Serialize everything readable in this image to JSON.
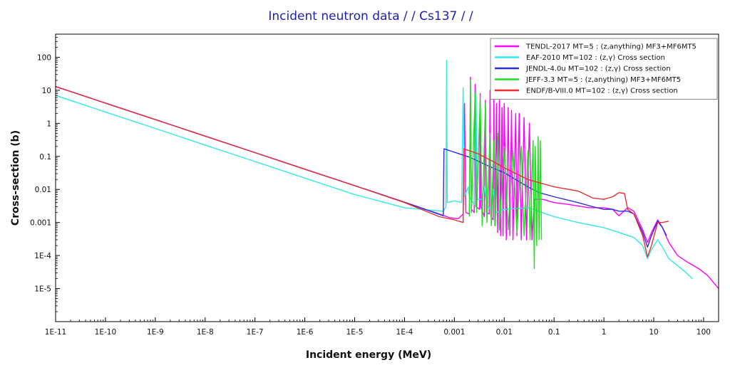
{
  "chart_data": {
    "type": "line",
    "title": "Incident neutron data  /  / Cs137  /  /",
    "xlabel": "Incident energy (MeV)",
    "ylabel": "Cross-section (b)",
    "xscale": "log",
    "yscale": "log",
    "xlim": [
      1e-11,
      200
    ],
    "ylim": [
      1e-06,
      500
    ],
    "grid": false,
    "legend_position": "top-right",
    "x_ticks": [
      {
        "value": 1e-11,
        "label": "1E-11"
      },
      {
        "value": 1e-10,
        "label": "1E-10"
      },
      {
        "value": 1e-09,
        "label": "1E-9"
      },
      {
        "value": 1e-08,
        "label": "1E-8"
      },
      {
        "value": 1e-07,
        "label": "1E-7"
      },
      {
        "value": 1e-06,
        "label": "1E-6"
      },
      {
        "value": 1e-05,
        "label": "1E-5"
      },
      {
        "value": 0.0001,
        "label": "1E-4"
      },
      {
        "value": 0.001,
        "label": "0.001"
      },
      {
        "value": 0.01,
        "label": "0.01"
      },
      {
        "value": 0.1,
        "label": "0.1"
      },
      {
        "value": 1,
        "label": "1"
      },
      {
        "value": 10,
        "label": "10"
      },
      {
        "value": 100,
        "label": "100"
      }
    ],
    "y_ticks": [
      {
        "value": 1e-05,
        "label": "1E-5"
      },
      {
        "value": 0.0001,
        "label": "1E-4"
      },
      {
        "value": 0.001,
        "label": "0.001"
      },
      {
        "value": 0.01,
        "label": "0.01"
      },
      {
        "value": 0.1,
        "label": "0.1"
      },
      {
        "value": 1,
        "label": "1"
      },
      {
        "value": 10,
        "label": "10"
      },
      {
        "value": 100,
        "label": "100"
      }
    ],
    "series": [
      {
        "name": "TENDL-2017  MT=5 : (z,anything) MF3+MF6MT5",
        "color": "#ff00ff",
        "points": [
          [
            1e-11,
            13
          ],
          [
            1e-10,
            4.1
          ],
          [
            1e-09,
            1.3
          ],
          [
            1e-08,
            0.41
          ],
          [
            1e-07,
            0.13
          ],
          [
            1e-06,
            0.041
          ],
          [
            1e-05,
            0.013
          ],
          [
            0.0001,
            0.0041
          ],
          [
            0.0005,
            0.0018
          ],
          [
            0.0008,
            0.0014
          ],
          [
            0.0012,
            0.0013
          ],
          [
            0.0015,
            0.0018
          ],
          [
            0.0016,
            4
          ],
          [
            0.0017,
            0.002
          ],
          [
            0.002,
            0.0018
          ],
          [
            0.0021,
            25
          ],
          [
            0.0022,
            0.0025
          ],
          [
            0.0025,
            0.002
          ],
          [
            0.0026,
            15
          ],
          [
            0.0027,
            0.003
          ],
          [
            0.0032,
            0.0025
          ],
          [
            0.0033,
            8
          ],
          [
            0.0034,
            0.003
          ],
          [
            0.004,
            0.0015
          ],
          [
            0.0042,
            5
          ],
          [
            0.0044,
            0.002
          ],
          [
            0.005,
            0.0018
          ],
          [
            0.0052,
            10
          ],
          [
            0.0054,
            0.0015
          ],
          [
            0.006,
            0.0012
          ],
          [
            0.0062,
            6
          ],
          [
            0.0065,
            0.0008
          ],
          [
            0.007,
            4
          ],
          [
            0.0074,
            0.0005
          ],
          [
            0.008,
            5
          ],
          [
            0.0085,
            0.0004
          ],
          [
            0.009,
            3
          ],
          [
            0.0095,
            0.0004
          ],
          [
            0.01,
            4
          ],
          [
            0.011,
            0.0003
          ],
          [
            0.012,
            3
          ],
          [
            0.013,
            0.0004
          ],
          [
            0.014,
            2.5
          ],
          [
            0.015,
            0.0003
          ],
          [
            0.017,
            2
          ],
          [
            0.018,
            0.0004
          ],
          [
            0.02,
            2
          ],
          [
            0.022,
            0.0003
          ],
          [
            0.025,
            1.5
          ],
          [
            0.028,
            0.0003
          ],
          [
            0.032,
            1
          ],
          [
            0.036,
            0.0003
          ],
          [
            0.04,
            0.005
          ],
          [
            0.06,
            0.005
          ],
          [
            0.1,
            0.004
          ],
          [
            0.2,
            0.0035
          ],
          [
            0.5,
            0.0028
          ],
          [
            1,
            0.0028
          ],
          [
            1.5,
            0.0025
          ],
          [
            2,
            0.0016
          ],
          [
            3,
            0.0028
          ],
          [
            4,
            0.0022
          ],
          [
            6,
            0.0006
          ],
          [
            7.5,
            0.00025
          ],
          [
            9,
            0.0005
          ],
          [
            12,
            0.0012
          ],
          [
            15,
            0.0007
          ],
          [
            20,
            0.00025
          ],
          [
            30,
            0.0001
          ],
          [
            50,
            6e-05
          ],
          [
            80,
            4e-05
          ],
          [
            120,
            2.5e-05
          ],
          [
            160,
            1.5e-05
          ],
          [
            200,
            1e-05
          ]
        ]
      },
      {
        "name": "EAF-2010  MT=102 : (z,γ) Cross section",
        "color": "#33e8e8",
        "points": [
          [
            1e-11,
            7
          ],
          [
            1e-10,
            2.2
          ],
          [
            1e-09,
            0.7
          ],
          [
            1e-08,
            0.22
          ],
          [
            1e-07,
            0.07
          ],
          [
            1e-06,
            0.022
          ],
          [
            1e-05,
            0.007
          ],
          [
            0.0001,
            0.0028
          ],
          [
            0.0003,
            0.0024
          ],
          [
            0.0006,
            0.0022
          ],
          [
            0.00068,
            0.003
          ],
          [
            0.0007,
            80
          ],
          [
            0.00072,
            0.004
          ],
          [
            0.001,
            0.0045
          ],
          [
            0.0014,
            0.004
          ],
          [
            0.0015,
            12
          ],
          [
            0.0016,
            0.006
          ],
          [
            0.0019,
            0.012
          ],
          [
            0.002,
            0.006
          ],
          [
            0.0025,
            0.0035
          ],
          [
            0.0027,
            12
          ],
          [
            0.0029,
            0.005
          ],
          [
            0.0035,
            0.005
          ],
          [
            0.004,
            0.012
          ],
          [
            0.0045,
            0.003
          ],
          [
            0.0055,
            0.0025
          ],
          [
            0.006,
            0.01
          ],
          [
            0.0068,
            0.002
          ],
          [
            0.008,
            0.0022
          ],
          [
            0.01,
            0.0025
          ],
          [
            0.03,
            0.0028
          ],
          [
            0.1,
            0.0015
          ],
          [
            0.3,
            0.001
          ],
          [
            1,
            0.0007
          ],
          [
            2,
            0.0005
          ],
          [
            4,
            0.00035
          ],
          [
            6,
            0.0002
          ],
          [
            7.5,
            8e-05
          ],
          [
            9,
            0.00015
          ],
          [
            12,
            0.0003
          ],
          [
            15,
            0.00018
          ],
          [
            20,
            8e-05
          ],
          [
            40,
            3.5e-05
          ],
          [
            60,
            2e-05
          ]
        ]
      },
      {
        "name": "JENDL-4.0u  MT=102 : (z,γ) Cross section",
        "color": "#2b2be0",
        "points": [
          [
            1e-11,
            13
          ],
          [
            1e-10,
            4.1
          ],
          [
            1e-09,
            1.3
          ],
          [
            1e-08,
            0.41
          ],
          [
            1e-07,
            0.13
          ],
          [
            1e-06,
            0.041
          ],
          [
            1e-05,
            0.013
          ],
          [
            0.0001,
            0.0041
          ],
          [
            0.0006,
            0.0016
          ],
          [
            0.00062,
            0.17
          ],
          [
            0.002,
            0.095
          ],
          [
            0.005,
            0.05
          ],
          [
            0.01,
            0.032
          ],
          [
            0.03,
            0.012
          ],
          [
            0.05,
            0.008
          ],
          [
            0.1,
            0.006
          ],
          [
            0.3,
            0.004
          ],
          [
            0.6,
            0.003
          ],
          [
            1,
            0.0025
          ],
          [
            1.5,
            0.0025
          ],
          [
            2,
            0.0022
          ],
          [
            3,
            0.0022
          ],
          [
            4,
            0.0018
          ],
          [
            6,
            0.0005
          ],
          [
            7.5,
            0.00018
          ],
          [
            9,
            0.0004
          ],
          [
            12,
            0.0011
          ],
          [
            15,
            0.0007
          ],
          [
            18,
            0.0004
          ]
        ]
      },
      {
        "name": "JEFF-3.3  MT=5 : (z,anything) MF3+MF6MT5",
        "color": "#22dd22",
        "points": [
          [
            0.002,
            0.0015
          ],
          [
            0.0021,
            20
          ],
          [
            0.0022,
            0.002
          ],
          [
            0.0026,
            8
          ],
          [
            0.0028,
            0.002
          ],
          [
            0.0033,
            6
          ],
          [
            0.0036,
            0.0008
          ],
          [
            0.0042,
            4
          ],
          [
            0.0045,
            0.001
          ],
          [
            0.0052,
            0.5
          ],
          [
            0.0055,
            0.0008
          ],
          [
            0.0062,
            0.3
          ],
          [
            0.0066,
            0.0008
          ],
          [
            0.0075,
            0.5
          ],
          [
            0.008,
            0.0006
          ],
          [
            0.01,
            0.2
          ],
          [
            0.012,
            0.0006
          ],
          [
            0.015,
            0.15
          ],
          [
            0.018,
            0.0005
          ],
          [
            0.022,
            0.2
          ],
          [
            0.025,
            0.0004
          ],
          [
            0.03,
            0.15
          ],
          [
            0.033,
            0.0003
          ],
          [
            0.038,
            0.3
          ],
          [
            0.04,
            4e-05
          ],
          [
            0.042,
            0.2
          ],
          [
            0.045,
            0.0002
          ],
          [
            0.048,
            0.4
          ],
          [
            0.05,
            0.0003
          ],
          [
            0.053,
            0.3
          ],
          [
            0.056,
            0.0003
          ]
        ]
      },
      {
        "name": "ENDF/B-VIII.0  MT=102 : (z,γ) Cross section",
        "color": "#e83030",
        "points": [
          [
            1e-11,
            13
          ],
          [
            1e-10,
            4.1
          ],
          [
            1e-09,
            1.3
          ],
          [
            1e-08,
            0.41
          ],
          [
            1e-07,
            0.13
          ],
          [
            1e-06,
            0.041
          ],
          [
            1e-05,
            0.013
          ],
          [
            0.0001,
            0.004
          ],
          [
            0.0005,
            0.0015
          ],
          [
            0.001,
            0.0012
          ],
          [
            0.0015,
            0.001
          ],
          [
            0.00155,
            0.17
          ],
          [
            0.003,
            0.12
          ],
          [
            0.006,
            0.07
          ],
          [
            0.01,
            0.045
          ],
          [
            0.03,
            0.02
          ],
          [
            0.1,
            0.012
          ],
          [
            0.3,
            0.009
          ],
          [
            0.6,
            0.0055
          ],
          [
            1,
            0.005
          ],
          [
            1.5,
            0.006
          ],
          [
            2,
            0.008
          ],
          [
            2.6,
            0.0075
          ],
          [
            3,
            0.0025
          ],
          [
            4,
            0.0018
          ],
          [
            6,
            0.0004
          ],
          [
            7.5,
            9e-05
          ],
          [
            9,
            0.0002
          ],
          [
            12,
            0.001
          ],
          [
            15,
            0.001
          ],
          [
            20,
            0.0011
          ]
        ]
      }
    ]
  }
}
